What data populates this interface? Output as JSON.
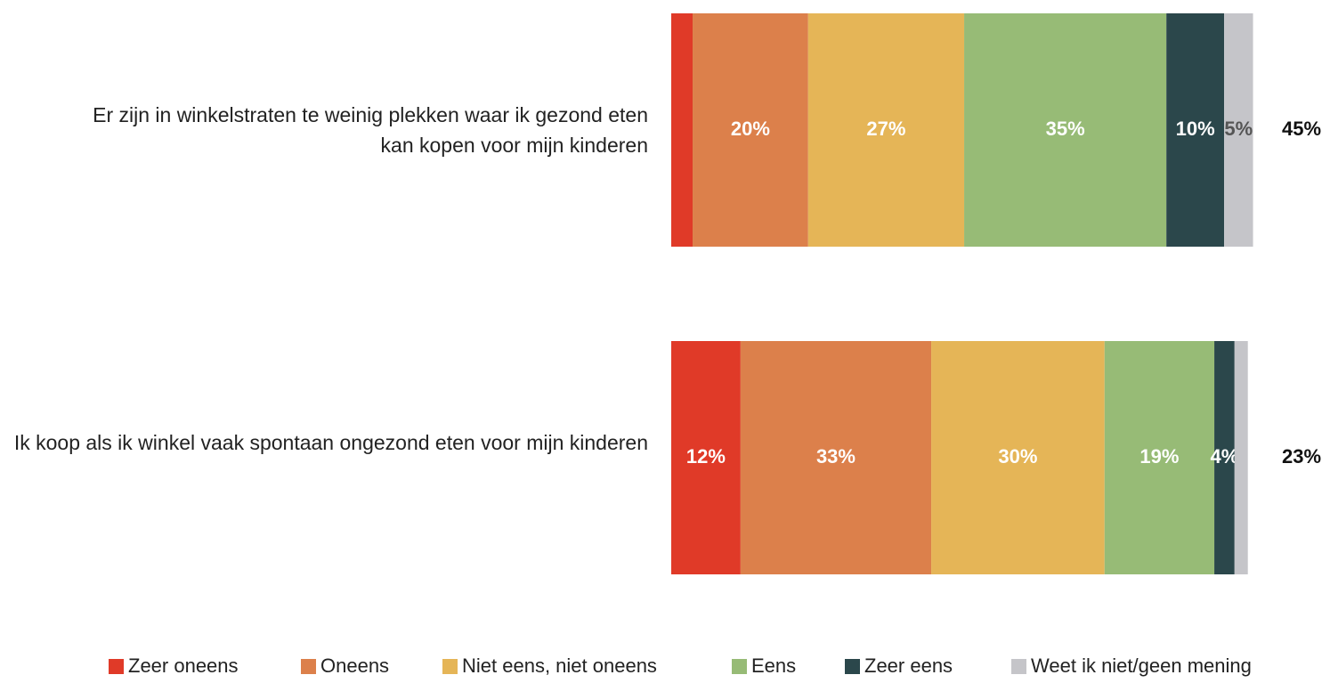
{
  "chart_data": {
    "type": "stacked-bar-horizontal",
    "categories": [
      "Er zijn in winkelstraten te weinig plekken waar ik gezond eten kan kopen voor mijn kinderen",
      "Ik koop als ik winkel vaak spontaan ongezond eten voor mijn kinderen"
    ],
    "series": [
      {
        "name": "Zeer oneens",
        "color": "#e03a28",
        "values": [
          3.7,
          12
        ],
        "value_labels": [
          null,
          "12%"
        ]
      },
      {
        "name": "Oneens",
        "color": "#dc804b",
        "values": [
          20,
          33
        ],
        "value_labels": [
          "20%",
          "33%"
        ]
      },
      {
        "name": "Niet eens, niet oneens",
        "color": "#e5b557",
        "values": [
          27,
          30
        ],
        "value_labels": [
          "27%",
          "30%"
        ]
      },
      {
        "name": "Eens",
        "color": "#97bb76",
        "values": [
          35,
          19
        ],
        "value_labels": [
          "35%",
          "19%"
        ]
      },
      {
        "name": "Zeer eens",
        "color": "#2b474b",
        "values": [
          10,
          3.5
        ],
        "value_labels": [
          "10%",
          "4%"
        ]
      },
      {
        "name": "Weet ik niet/geen mening",
        "color": "#c5c5c9",
        "values": [
          5,
          2.3
        ],
        "value_labels": [
          "5%",
          null
        ]
      }
    ],
    "totals": {
      "values": [
        45,
        23
      ],
      "value_labels": [
        "45%",
        "23%"
      ]
    },
    "xlim": [
      0,
      100
    ]
  }
}
